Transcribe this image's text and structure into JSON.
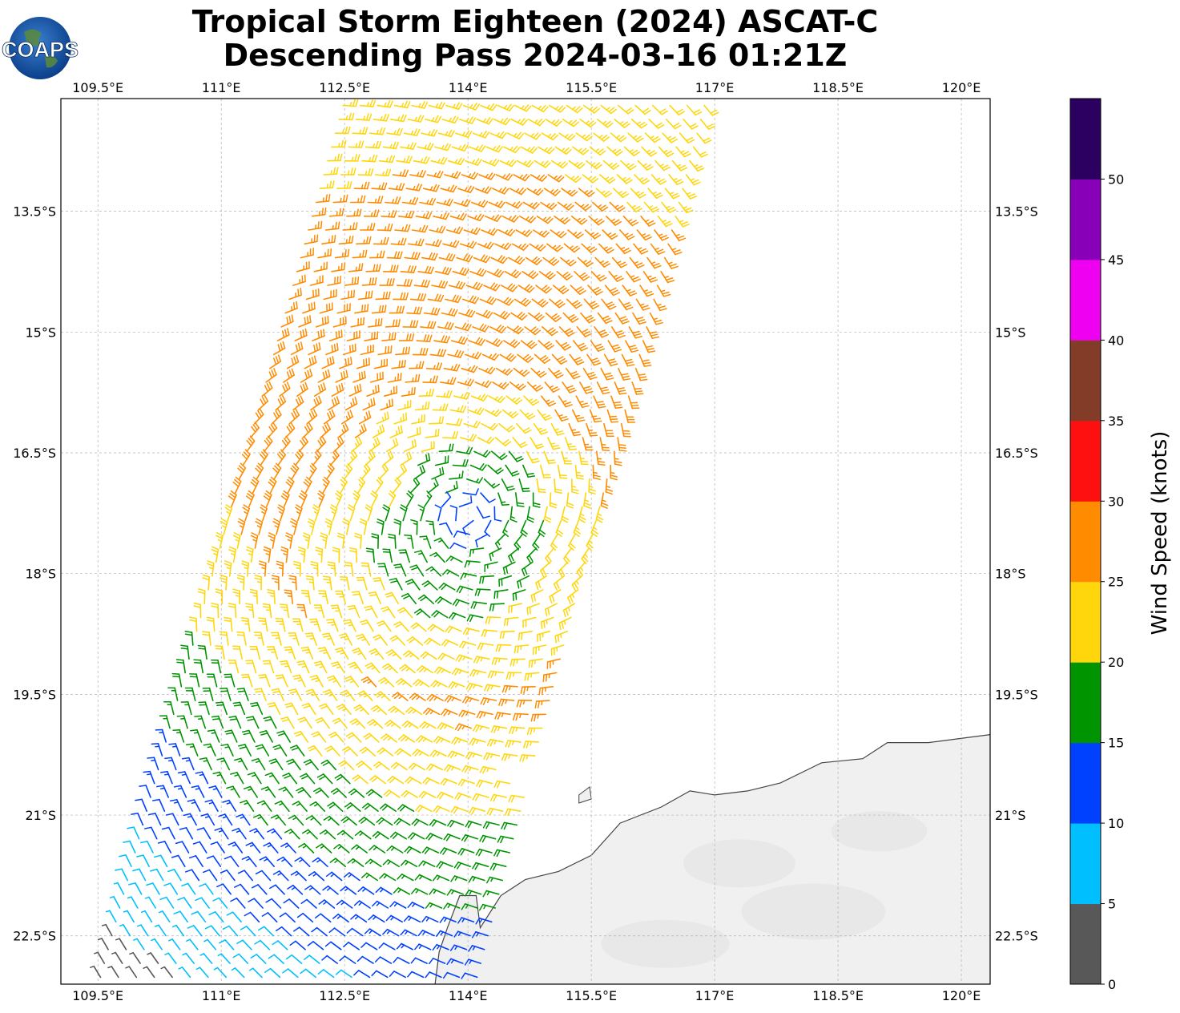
{
  "title": {
    "line1": "Tropical Storm Eighteen (2024) ASCAT-C",
    "line2": "Descending Pass 2024-03-16 01:21Z"
  },
  "logo": {
    "text": "COAPS",
    "icon": "globe-icon"
  },
  "map": {
    "lon_range": [
      109.05,
      120.35
    ],
    "lat_range": [
      -23.1,
      -12.1
    ],
    "lon_ticks": [
      {
        "value": 109.5,
        "label": "109.5°E"
      },
      {
        "value": 111.0,
        "label": "111°E"
      },
      {
        "value": 112.5,
        "label": "112.5°E"
      },
      {
        "value": 114.0,
        "label": "114°E"
      },
      {
        "value": 115.5,
        "label": "115.5°E"
      },
      {
        "value": 117.0,
        "label": "117°E"
      },
      {
        "value": 118.5,
        "label": "118.5°E"
      },
      {
        "value": 120.0,
        "label": "120°E"
      }
    ],
    "lat_ticks": [
      {
        "value": -13.5,
        "label": "13.5°S"
      },
      {
        "value": -15.0,
        "label": "15°S"
      },
      {
        "value": -16.5,
        "label": "16.5°S"
      },
      {
        "value": -18.0,
        "label": "18°S"
      },
      {
        "value": -19.5,
        "label": "19.5°S"
      },
      {
        "value": -21.0,
        "label": "21°S"
      },
      {
        "value": -22.5,
        "label": "22.5°S"
      }
    ],
    "grid": true,
    "storm_center": {
      "lon": 114.0,
      "lat": -17.3
    },
    "swath": {
      "top_lon_range": [
        112.4,
        117.0
      ],
      "bottom_lon_range": [
        109.4,
        114.2
      ],
      "lat_range": [
        -23.1,
        -12.1
      ]
    },
    "coastline": [
      [
        120.35,
        -20.0
      ],
      [
        119.6,
        -20.1
      ],
      [
        119.1,
        -20.1
      ],
      [
        118.8,
        -20.3
      ],
      [
        118.3,
        -20.35
      ],
      [
        117.8,
        -20.6
      ],
      [
        117.4,
        -20.7
      ],
      [
        117.0,
        -20.75
      ],
      [
        116.7,
        -20.7
      ],
      [
        116.35,
        -20.9
      ],
      [
        116.1,
        -21.0
      ],
      [
        115.85,
        -21.1
      ],
      [
        115.5,
        -21.5
      ],
      [
        115.1,
        -21.7
      ],
      [
        114.7,
        -21.8
      ],
      [
        114.4,
        -22.0
      ],
      [
        114.15,
        -22.4
      ],
      [
        114.1,
        -22.0
      ],
      [
        113.9,
        -22.0
      ],
      [
        113.75,
        -22.4
      ],
      [
        113.65,
        -22.7
      ],
      [
        113.6,
        -23.1
      ]
    ],
    "islands": [
      [
        [
          115.35,
          -20.75
        ],
        [
          115.48,
          -20.65
        ],
        [
          115.5,
          -20.8
        ],
        [
          115.35,
          -20.85
        ]
      ]
    ],
    "land_color": "#f0f0f0",
    "coast_color": "#444444"
  },
  "colorbar": {
    "label": "Wind Speed (knots)",
    "min": 0,
    "max": 55,
    "colors": [
      "#585858",
      "#00bfff",
      "#0040ff",
      "#009400",
      "#ffd60c",
      "#ff8c00",
      "#ff1010",
      "#823c28",
      "#f000f0",
      "#8800b8",
      "#2c0060"
    ],
    "ticks": [
      0,
      5,
      10,
      15,
      20,
      25,
      30,
      35,
      40,
      45,
      50
    ]
  }
}
